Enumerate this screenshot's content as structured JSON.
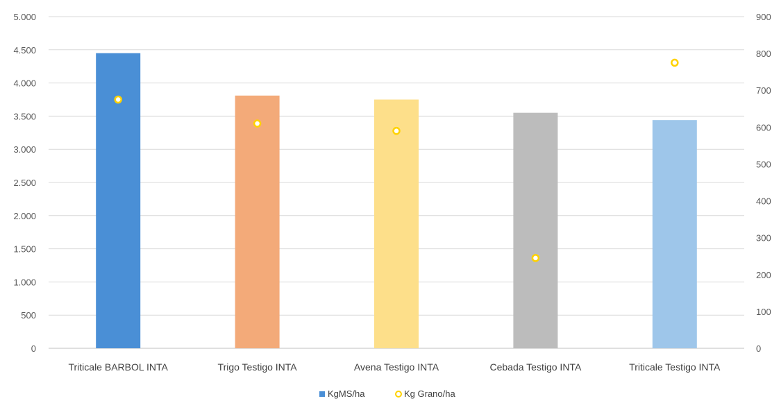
{
  "chart_data": {
    "type": "bar",
    "categories": [
      "Triticale BARBOL INTA",
      "Trigo Testigo INTA",
      "Avena Testigo INTA",
      "Cebada Testigo INTA",
      "Triticale Testigo INTA"
    ],
    "series": [
      {
        "name": "KgMS/ha",
        "type": "bar",
        "axis": "left",
        "values": [
          4450,
          3810,
          3750,
          3550,
          3440
        ],
        "colors": [
          "#4a8fd6",
          "#f3aa79",
          "#fddf8a",
          "#bcbcbc",
          "#9ec6ea"
        ]
      },
      {
        "name": "Kg Grano/ha",
        "type": "scatter",
        "axis": "right",
        "values": [
          675,
          610,
          590,
          245,
          775
        ],
        "color": "#ffd200"
      }
    ],
    "ylim": [
      0,
      5000
    ],
    "y_ticks": [
      0,
      500,
      1000,
      1500,
      2000,
      2500,
      3000,
      3500,
      4000,
      4500,
      5000
    ],
    "y_tick_labels": [
      "0",
      "500",
      "1.000",
      "1.500",
      "2.000",
      "2.500",
      "3.000",
      "3.500",
      "4.000",
      "4.500",
      "5.000"
    ],
    "y2lim": [
      0,
      900
    ],
    "y2_ticks": [
      0,
      100,
      200,
      300,
      400,
      500,
      600,
      700,
      800,
      900
    ],
    "y2_tick_labels": [
      "0",
      "100",
      "200",
      "300",
      "400",
      "500",
      "600",
      "700",
      "800",
      "900"
    ],
    "grid": true,
    "legend_position": "bottom"
  }
}
